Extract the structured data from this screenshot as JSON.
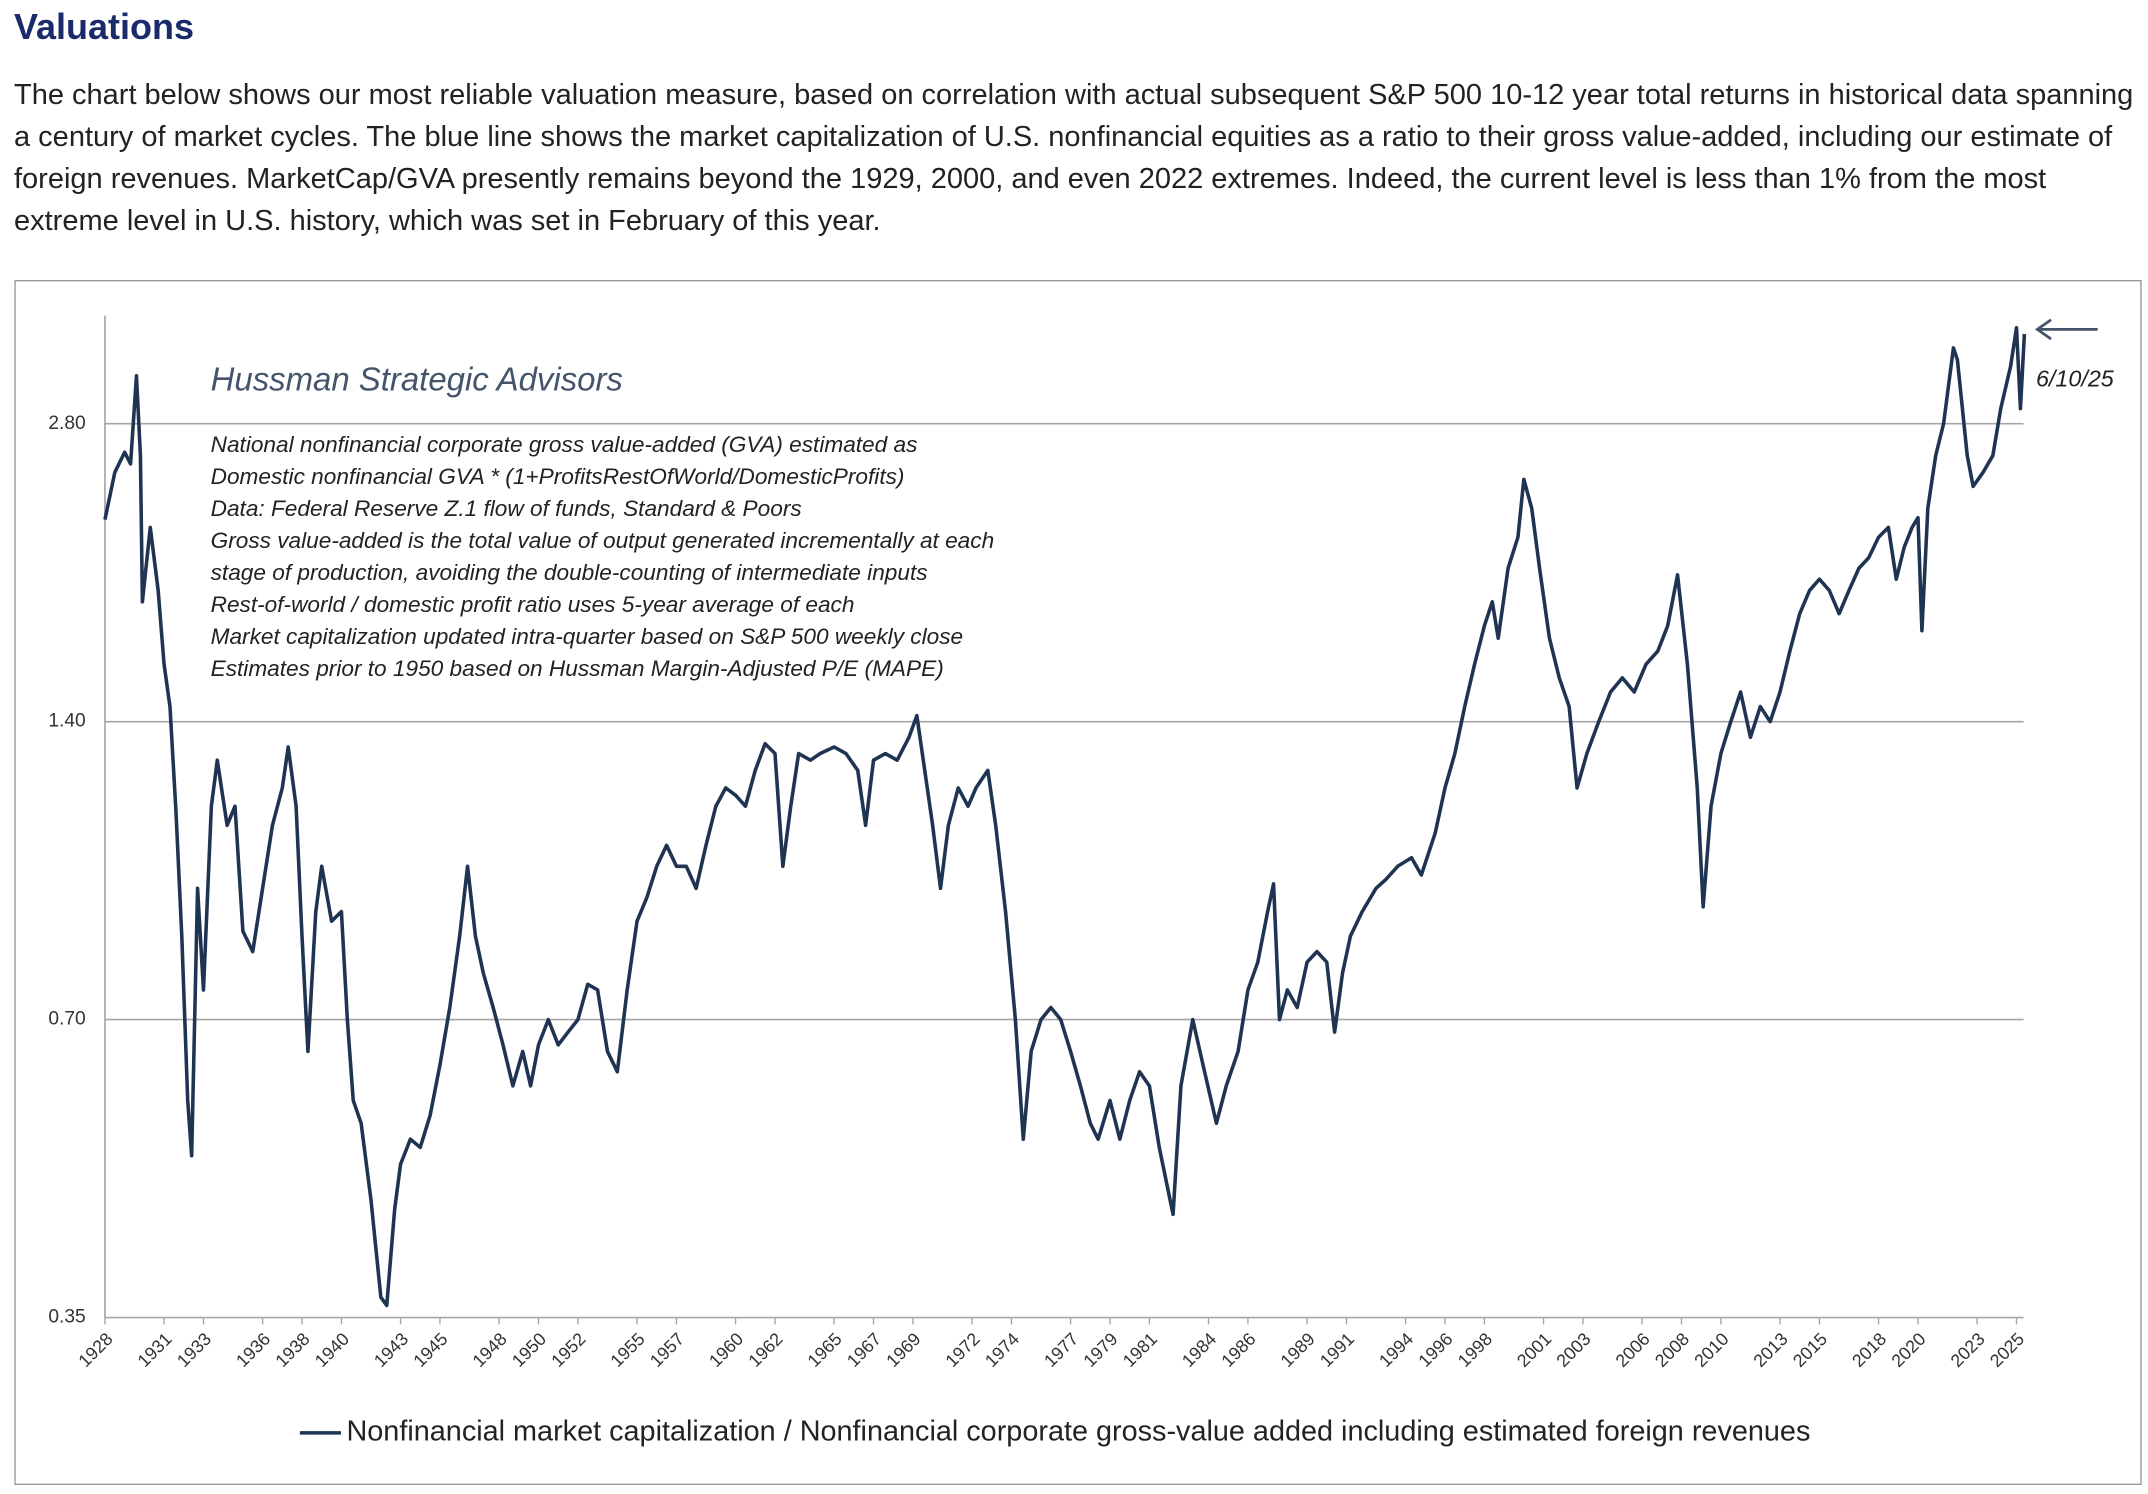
{
  "heading": "Valuations",
  "paragraph": "The chart below shows our most reliable valuation measure, based on correlation with actual subsequent S&P 500 10-12 year total returns in historical data spanning a century of market cycles. The blue line shows the market capitalization of U.S. nonfinancial equities as a ratio to their gross value-added, including our estimate of foreign revenues. MarketCap/GVA presently remains beyond the 1929, 2000, and even 2022 extremes. Indeed, the current level is less than 1% from the most extreme level in U.S. history, which was set in February of this year.",
  "chart_data": {
    "type": "line",
    "title": "Hussman Strategic Advisors",
    "notes": [
      "National nonfinancial corporate gross value-added (GVA) estimated as",
      "Domestic nonfinancial GVA * (1+ProfitsRestOfWorld/DomesticProfits)",
      "Data: Federal Reserve Z.1 flow of funds, Standard & Poors",
      "Gross value-added is the total value of output generated incrementally at each",
      "stage of production, avoiding the double-counting of intermediate inputs",
      "Rest-of-world / domestic profit ratio uses 5-year average of each",
      "Market capitalization updated intra-quarter based on S&P 500 weekly close",
      "Estimates prior to 1950 based on Hussman Margin-Adjusted P/E (MAPE)"
    ],
    "annotation": "6/10/25",
    "log_y": true,
    "grid": true,
    "legend": "bottom",
    "xlim": [
      1928,
      2025.5
    ],
    "ylim": [
      0.35,
      3.6
    ],
    "yticks": [
      0.35,
      {
        "value": 0.7,
        "label": "0.70"
      },
      {
        "value": 1.4,
        "label": "1.40"
      },
      {
        "value": 2.8,
        "label": "2.80"
      }
    ],
    "xticks": [
      1928,
      1931,
      1933,
      1936,
      1938,
      1940,
      1943,
      1945,
      1948,
      1950,
      1952,
      1955,
      1957,
      1960,
      1962,
      1965,
      1967,
      1969,
      1972,
      1974,
      1977,
      1979,
      1981,
      1984,
      1986,
      1989,
      1991,
      1994,
      1996,
      1998,
      2001,
      2003,
      2006,
      2008,
      2010,
      2013,
      2015,
      2018,
      2020,
      2023,
      2025
    ],
    "x": [
      1928.0,
      1928.5,
      1929.0,
      1929.3,
      1929.6,
      1929.8,
      1929.9,
      1930.3,
      1930.7,
      1931.0,
      1931.3,
      1931.6,
      1931.9,
      1932.2,
      1932.4,
      1932.7,
      1933.0,
      1933.4,
      1933.7,
      1934.2,
      1934.6,
      1935.0,
      1935.5,
      1936.0,
      1936.5,
      1937.0,
      1937.3,
      1937.7,
      1938.0,
      1938.3,
      1938.7,
      1939.0,
      1939.5,
      1940.0,
      1940.3,
      1940.6,
      1941.0,
      1941.5,
      1942.0,
      1942.3,
      1942.7,
      1943.0,
      1943.5,
      1944.0,
      1944.5,
      1945.0,
      1945.5,
      1946.0,
      1946.4,
      1946.8,
      1947.2,
      1947.7,
      1948.2,
      1948.7,
      1949.2,
      1949.6,
      1950.0,
      1950.5,
      1951.0,
      1951.5,
      1952.0,
      1952.5,
      1953.0,
      1953.5,
      1954.0,
      1954.5,
      1955.0,
      1955.5,
      1956.0,
      1956.5,
      1957.0,
      1957.5,
      1958.0,
      1958.5,
      1959.0,
      1959.5,
      1960.0,
      1960.5,
      1961.0,
      1961.5,
      1962.0,
      1962.4,
      1962.8,
      1963.2,
      1963.8,
      1964.3,
      1965.0,
      1965.6,
      1966.2,
      1966.6,
      1967.0,
      1967.6,
      1968.2,
      1968.8,
      1969.2,
      1969.6,
      1970.0,
      1970.4,
      1970.8,
      1971.3,
      1971.8,
      1972.2,
      1972.8,
      1973.2,
      1973.7,
      1974.2,
      1974.6,
      1975.0,
      1975.5,
      1976.0,
      1976.5,
      1977.0,
      1977.5,
      1978.0,
      1978.4,
      1979.0,
      1979.5,
      1980.0,
      1980.5,
      1981.0,
      1981.5,
      1982.2,
      1982.6,
      1983.2,
      1983.8,
      1984.4,
      1984.9,
      1985.5,
      1986.0,
      1986.5,
      1987.0,
      1987.3,
      1987.6,
      1988.0,
      1988.5,
      1989.0,
      1989.5,
      1990.0,
      1990.4,
      1990.8,
      1991.2,
      1991.8,
      1992.5,
      1993.0,
      1993.6,
      1994.3,
      1994.8,
      1995.5,
      1996.0,
      1996.5,
      1997.0,
      1997.5,
      1998.0,
      1998.4,
      1998.7,
      1999.2,
      1999.7,
      2000.0,
      2000.4,
      2000.8,
      2001.3,
      2001.8,
      2002.3,
      2002.7,
      2003.2,
      2003.8,
      2004.4,
      2005.0,
      2005.6,
      2006.2,
      2006.8,
      2007.3,
      2007.8,
      2008.3,
      2008.8,
      2009.1,
      2009.5,
      2010.0,
      2010.5,
      2011.0,
      2011.5,
      2012.0,
      2012.5,
      2013.0,
      2013.5,
      2014.0,
      2014.5,
      2015.0,
      2015.5,
      2016.0,
      2016.5,
      2017.0,
      2017.5,
      2018.0,
      2018.5,
      2018.9,
      2019.3,
      2019.7,
      2020.0,
      2020.2,
      2020.5,
      2020.9,
      2021.3,
      2021.8,
      2022.0,
      2022.5,
      2022.8,
      2023.3,
      2023.8,
      2024.2,
      2024.7,
      2025.0,
      2025.2,
      2025.4
    ],
    "series": [
      {
        "name": "Nonfinancial market capitalization / Nonfinancial corporate gross-value added including estimated foreign revenues",
        "color": "#1f3352",
        "values": [
          2.24,
          2.5,
          2.62,
          2.55,
          3.13,
          2.6,
          1.85,
          2.2,
          1.9,
          1.6,
          1.45,
          1.14,
          0.85,
          0.58,
          0.51,
          0.95,
          0.75,
          1.15,
          1.28,
          1.1,
          1.15,
          0.86,
          0.82,
          0.95,
          1.1,
          1.2,
          1.32,
          1.15,
          0.85,
          0.65,
          0.9,
          1.0,
          0.88,
          0.9,
          0.7,
          0.58,
          0.55,
          0.46,
          0.367,
          0.36,
          0.45,
          0.5,
          0.53,
          0.52,
          0.56,
          0.63,
          0.72,
          0.85,
          1.0,
          0.85,
          0.78,
          0.72,
          0.66,
          0.6,
          0.65,
          0.6,
          0.66,
          0.7,
          0.66,
          0.68,
          0.7,
          0.76,
          0.75,
          0.65,
          0.62,
          0.75,
          0.88,
          0.93,
          1.0,
          1.05,
          1.0,
          1.0,
          0.95,
          1.05,
          1.15,
          1.2,
          1.18,
          1.15,
          1.25,
          1.33,
          1.3,
          1.0,
          1.15,
          1.3,
          1.28,
          1.3,
          1.32,
          1.3,
          1.25,
          1.1,
          1.28,
          1.3,
          1.28,
          1.35,
          1.42,
          1.25,
          1.1,
          0.95,
          1.1,
          1.2,
          1.15,
          1.2,
          1.25,
          1.1,
          0.9,
          0.7,
          0.53,
          0.65,
          0.7,
          0.72,
          0.7,
          0.65,
          0.6,
          0.55,
          0.53,
          0.58,
          0.53,
          0.58,
          0.62,
          0.6,
          0.52,
          0.445,
          0.6,
          0.7,
          0.62,
          0.55,
          0.6,
          0.65,
          0.75,
          0.8,
          0.9,
          0.96,
          0.7,
          0.75,
          0.72,
          0.8,
          0.82,
          0.8,
          0.68,
          0.78,
          0.85,
          0.9,
          0.95,
          0.97,
          1.0,
          1.02,
          0.98,
          1.08,
          1.2,
          1.3,
          1.45,
          1.6,
          1.75,
          1.85,
          1.7,
          2.0,
          2.15,
          2.46,
          2.3,
          2.0,
          1.7,
          1.55,
          1.45,
          1.2,
          1.3,
          1.4,
          1.5,
          1.55,
          1.5,
          1.6,
          1.65,
          1.75,
          1.97,
          1.6,
          1.2,
          0.91,
          1.15,
          1.3,
          1.4,
          1.5,
          1.35,
          1.45,
          1.4,
          1.5,
          1.65,
          1.8,
          1.9,
          1.95,
          1.9,
          1.8,
          1.9,
          2.0,
          2.05,
          2.15,
          2.2,
          1.95,
          2.1,
          2.2,
          2.25,
          1.73,
          2.3,
          2.6,
          2.8,
          3.34,
          3.25,
          2.6,
          2.42,
          2.5,
          2.6,
          2.9,
          3.2,
          3.5,
          2.9,
          3.45
        ]
      }
    ]
  }
}
